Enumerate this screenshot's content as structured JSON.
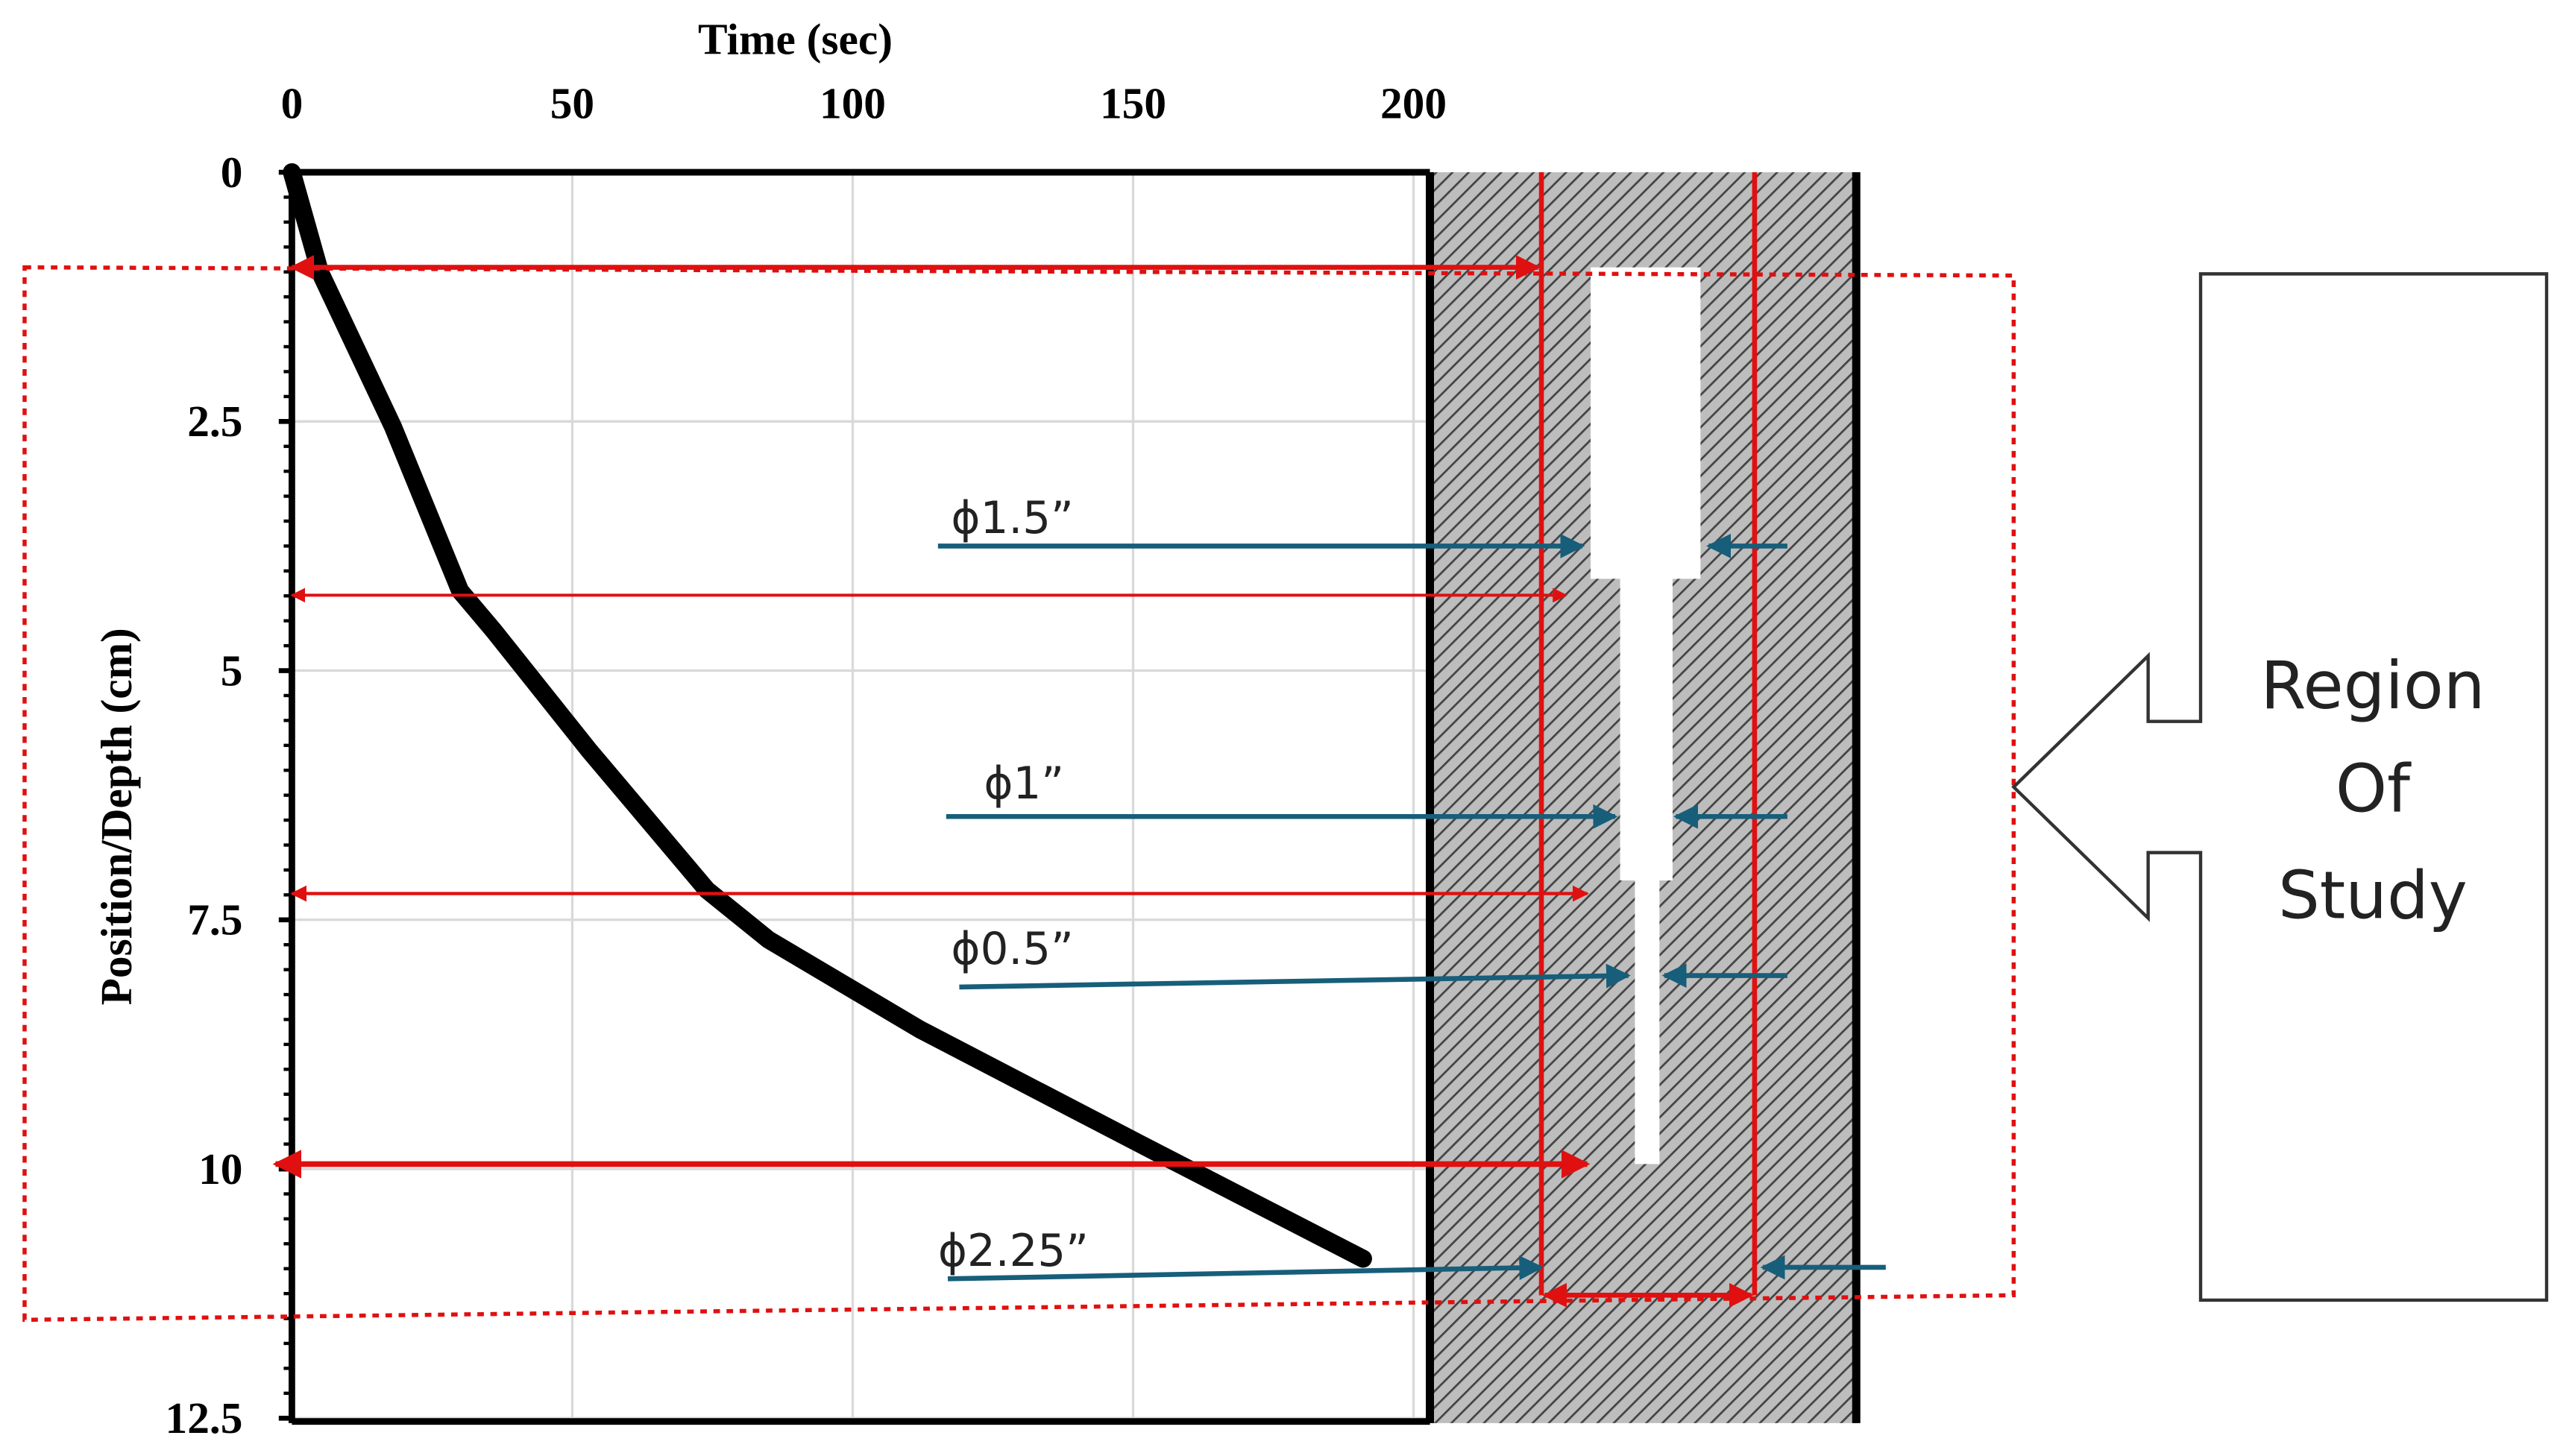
{
  "chart_data": {
    "type": "line",
    "xlabel": "Time (sec)",
    "ylabel": "Position/Depth  (cm)",
    "x": [
      0,
      5,
      18,
      30,
      36,
      53,
      74,
      85,
      112,
      153,
      191
    ],
    "series": [
      {
        "name": "Position",
        "color": "#000000",
        "values": [
          0,
          1,
          2.55,
          4.2,
          4.6,
          5.8,
          7.2,
          7.7,
          8.6,
          9.8,
          10.9
        ]
      }
    ],
    "xlim": [
      0,
      200
    ],
    "xticks": [
      0,
      50,
      100,
      150,
      200
    ],
    "ylim": [
      0,
      12.5
    ],
    "yticks": [
      0,
      2.5,
      5,
      7.5,
      10,
      12.5
    ],
    "y_inverted": true,
    "x_axis_top": true,
    "grid": true,
    "annotations": [
      "ϕ1.5”",
      "ϕ1”",
      "ϕ0.5”",
      "ϕ2.25”"
    ],
    "callout": [
      "Region",
      "Of",
      "Study"
    ]
  }
}
